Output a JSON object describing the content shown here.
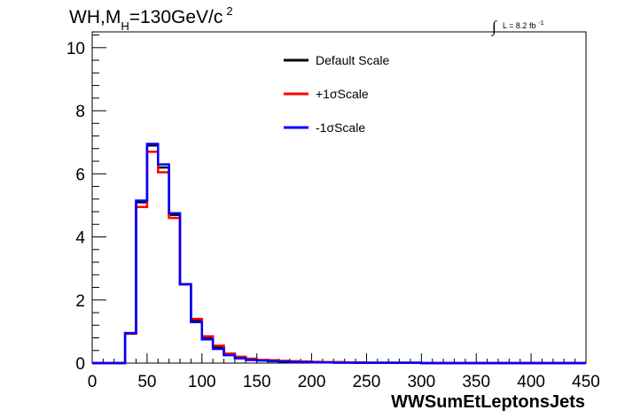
{
  "title": {
    "main": "WH,M",
    "sub": "H",
    "rest": "=130GeV/c",
    "sup": "2"
  },
  "luminosity": {
    "integral_symbol": "∫",
    "text": "L = 8.2 fb",
    "sup": "-1"
  },
  "chart_data": {
    "type": "line",
    "style": "step-histogram",
    "xlabel": "WWSumEtLeptonsJets",
    "ylabel": "",
    "xlim": [
      0,
      450
    ],
    "ylim": [
      0,
      10.5
    ],
    "x_ticks": [
      0,
      50,
      100,
      150,
      200,
      250,
      300,
      350,
      400,
      450
    ],
    "y_ticks": [
      0,
      2,
      4,
      6,
      8,
      10
    ],
    "bin_edges": [
      0,
      10,
      20,
      30,
      40,
      50,
      60,
      70,
      80,
      90,
      100,
      110,
      120,
      130,
      140,
      150,
      160,
      170,
      180,
      190,
      200,
      210,
      220,
      230,
      240,
      250,
      260,
      270,
      280,
      290,
      300,
      310,
      320,
      330,
      340,
      350,
      360,
      370,
      380,
      390,
      400,
      410,
      420,
      430,
      440,
      450,
      460
    ],
    "legend_position": "top-center",
    "series": [
      {
        "name": "Default Scale",
        "color": "#000000",
        "values": [
          0,
          0,
          0,
          0.95,
          5.1,
          6.9,
          6.2,
          4.7,
          2.5,
          1.35,
          0.8,
          0.5,
          0.28,
          0.18,
          0.12,
          0.09,
          0.08,
          0.06,
          0.05,
          0.04,
          0.03,
          0.02,
          0.02,
          0.02,
          0.01,
          0.01,
          0.01,
          0.01,
          0.01,
          0.01,
          0,
          0,
          0,
          0,
          0,
          0,
          0,
          0,
          0,
          0,
          0,
          0,
          0,
          0,
          0,
          0
        ]
      },
      {
        "name": "+1σScale",
        "color": "#ff0000",
        "values": [
          0,
          0,
          0,
          0.93,
          4.95,
          6.7,
          6.05,
          4.6,
          2.5,
          1.4,
          0.85,
          0.55,
          0.3,
          0.2,
          0.14,
          0.1,
          0.09,
          0.07,
          0.06,
          0.05,
          0.04,
          0.03,
          0.03,
          0.02,
          0.02,
          0.01,
          0.01,
          0.01,
          0.01,
          0.01,
          0,
          0,
          0,
          0,
          0,
          0,
          0,
          0,
          0,
          0,
          0,
          0,
          0,
          0,
          0,
          0
        ]
      },
      {
        "name": "-1σScale",
        "color": "#0000ff",
        "values": [
          0,
          0,
          0,
          0.95,
          5.15,
          6.95,
          6.3,
          4.75,
          2.5,
          1.3,
          0.75,
          0.45,
          0.25,
          0.15,
          0.1,
          0.08,
          0.06,
          0.05,
          0.04,
          0.03,
          0.02,
          0.02,
          0.01,
          0.01,
          0.01,
          0.01,
          0.01,
          0.01,
          0.01,
          0.01,
          0,
          0,
          0,
          0,
          0,
          0,
          0,
          0,
          0,
          0,
          0,
          0,
          0,
          0,
          0,
          0
        ]
      }
    ]
  }
}
